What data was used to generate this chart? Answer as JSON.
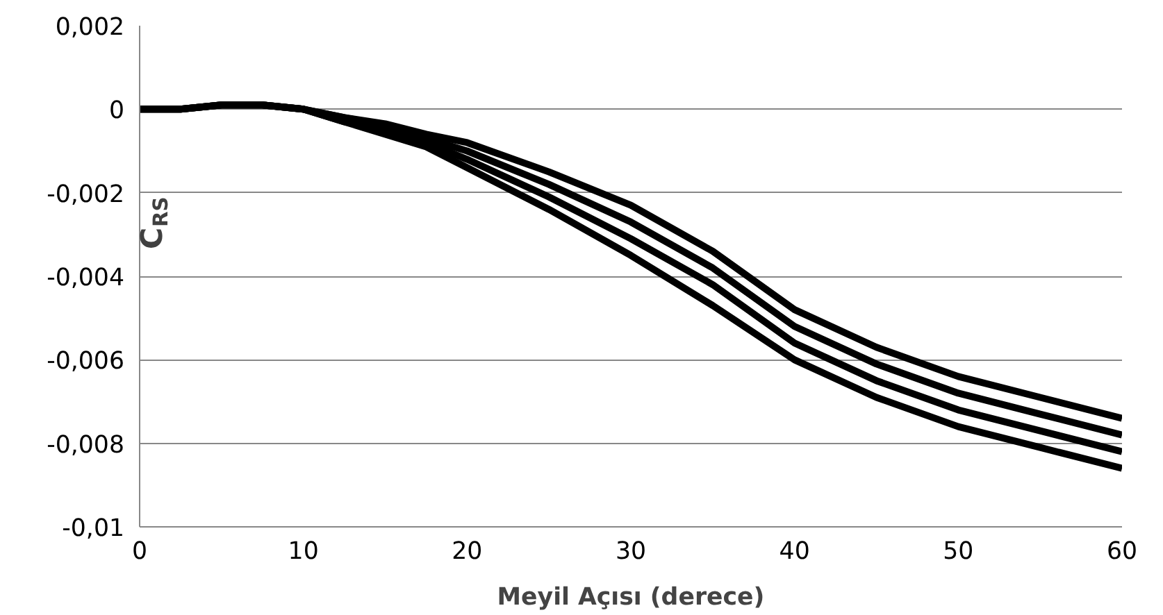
{
  "chart_data": {
    "type": "line",
    "xlabel": "Meyil Açısı (derece)",
    "ylabel": "C$_{RS}$",
    "x": [
      0,
      2.5,
      5,
      7.5,
      10,
      12.5,
      15,
      17.5,
      20,
      25,
      30,
      35,
      40,
      45,
      50,
      55,
      60
    ],
    "series": [
      {
        "color": "#000000",
        "values": [
          0,
          0,
          0.0001,
          0.0001,
          0,
          -0.0002,
          -0.00035,
          -0.0006,
          -0.0008,
          -0.0015,
          -0.0023,
          -0.0034,
          -0.0048,
          -0.0057,
          -0.0064,
          -0.0069,
          -0.0074
        ]
      },
      {
        "color": "#000000",
        "values": [
          0,
          0,
          0.0001,
          0.0001,
          0,
          -0.0002,
          -0.0004,
          -0.0007,
          -0.001,
          -0.0018,
          -0.0027,
          -0.0038,
          -0.0052,
          -0.0061,
          -0.0068,
          -0.0073,
          -0.0078
        ]
      },
      {
        "color": "#000000",
        "values": [
          0,
          0,
          0.0001,
          0.0001,
          0,
          -0.0003,
          -0.0005,
          -0.0008,
          -0.0012,
          -0.0021,
          -0.0031,
          -0.0042,
          -0.0056,
          -0.0065,
          -0.0072,
          -0.0077,
          -0.0082
        ]
      },
      {
        "color": "#000000",
        "values": [
          0,
          0,
          0.0001,
          0.0001,
          0,
          -0.0003,
          -0.0006,
          -0.0009,
          -0.0014,
          -0.0024,
          -0.0035,
          -0.0047,
          -0.006,
          -0.0069,
          -0.0076,
          -0.0081,
          -0.0086
        ]
      }
    ],
    "xlim": [
      0,
      60
    ],
    "xticks": [
      0,
      10,
      20,
      30,
      40,
      50,
      60
    ],
    "ylim": [
      -0.01,
      0.002
    ],
    "yticks": [
      {
        "value": -0.01,
        "label": "-0,01"
      },
      {
        "value": -0.008,
        "label": "-0,008"
      },
      {
        "value": -0.006,
        "label": "-0,006"
      },
      {
        "value": -0.004,
        "label": "-0,004"
      },
      {
        "value": -0.002,
        "label": "-0,002"
      },
      {
        "value": 0,
        "label": "0"
      },
      {
        "value": 0.002,
        "label": "0,002"
      }
    ],
    "grid": "y",
    "marker": "none",
    "line_style": "solid"
  }
}
